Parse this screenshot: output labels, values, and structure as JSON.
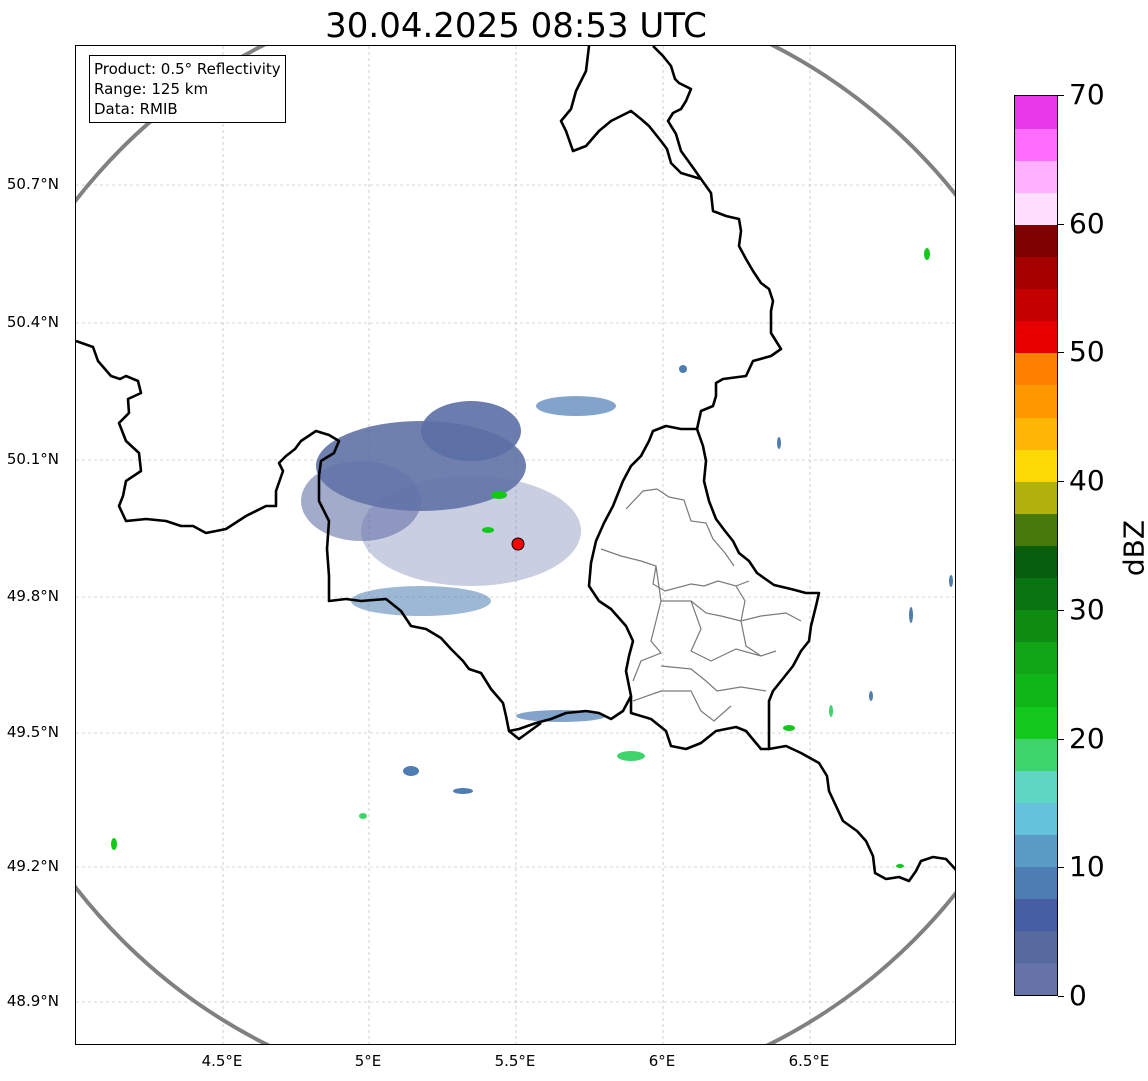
{
  "title": "30.04.2025 08:53 UTC",
  "info": {
    "product": "Product: 0.5° Reflectivity",
    "range": "Range: 125 km",
    "data": "Data: RMIB"
  },
  "lat_labels": [
    "50.7°N",
    "50.4°N",
    "50.1°N",
    "49.8°N",
    "49.5°N",
    "49.2°N",
    "48.9°N"
  ],
  "lon_labels": [
    "4.5°E",
    "5°E",
    "5.5°E",
    "6°E",
    "6.5°E"
  ],
  "colorbar": {
    "unit": "dBZ",
    "tick_labels": [
      "0",
      "10",
      "20",
      "30",
      "40",
      "50",
      "60",
      "70"
    ],
    "colors": [
      "#6573a8",
      "#566aa0",
      "#465fa4",
      "#4d7db3",
      "#5b9cc7",
      "#65c2dc",
      "#5fd5c4",
      "#3ed46c",
      "#12c81b",
      "#10b618",
      "#0fa514",
      "#0e8c12",
      "#0a7411",
      "#075e0c",
      "#477a0b",
      "#b0b20b",
      "#fdd903",
      "#feb503",
      "#ff9701",
      "#ff7f00",
      "#e60000",
      "#c40000",
      "#a40000",
      "#7e0000",
      "#ffdfff",
      "#ffb1ff",
      "#ff6dff",
      "#e93ae9"
    ]
  },
  "radar_site": {
    "lon": 5.505,
    "lat": 49.914,
    "color": "#ff0000"
  },
  "range_ring_color": "#808080"
}
